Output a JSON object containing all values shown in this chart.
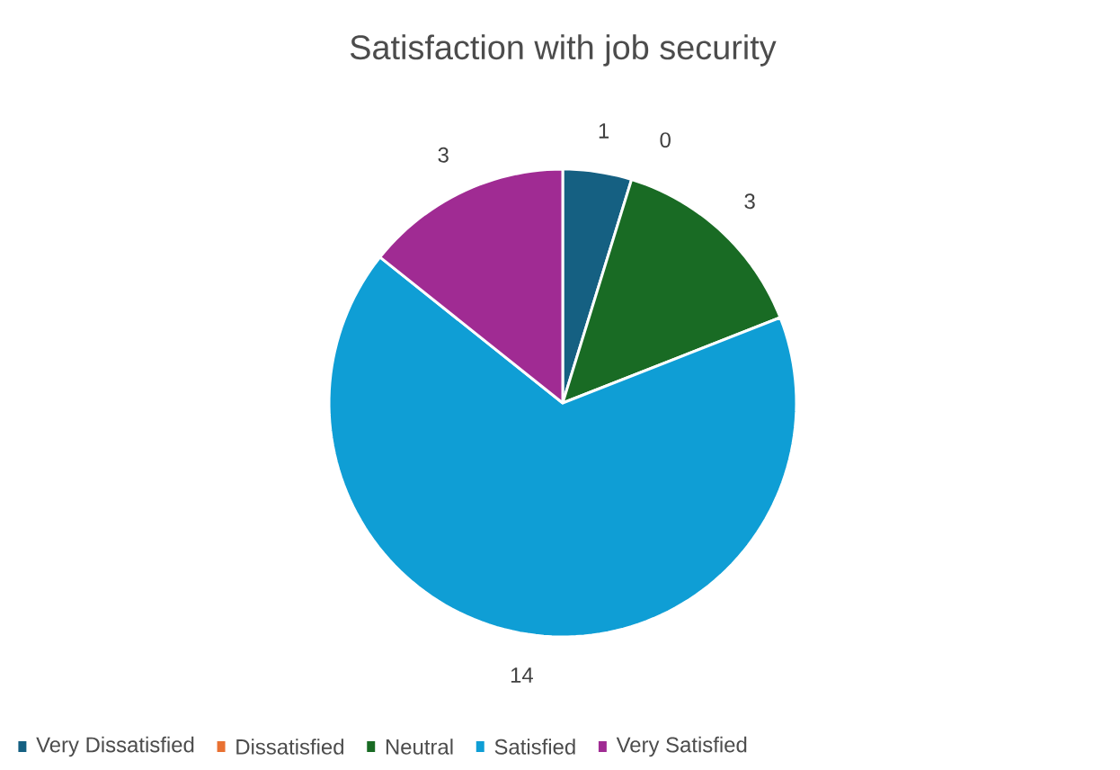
{
  "chart_data": {
    "type": "pie",
    "title": "Satisfaction with job security",
    "categories": [
      "Very Dissatisfied",
      "Dissatisfied",
      "Neutral",
      "Satisfied",
      "Very Satisfied"
    ],
    "values": [
      1,
      0,
      3,
      14,
      3
    ],
    "colors": [
      "#156082",
      "#e97132",
      "#196b24",
      "#0f9ed5",
      "#a02b93"
    ],
    "value_labels": [
      "1",
      "0",
      "3",
      "14",
      "3"
    ],
    "legend": "bottom"
  }
}
